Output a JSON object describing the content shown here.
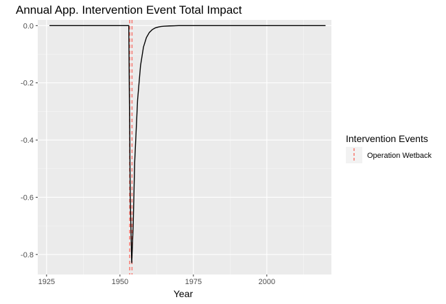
{
  "chart_data": {
    "type": "line",
    "title": "Annual App. Intervention Event Total Impact",
    "xlabel": "Year",
    "ylabel": "",
    "xlim": [
      1922,
      2022
    ],
    "ylim": [
      -0.87,
      0.02
    ],
    "x_ticks": [
      1925,
      1950,
      1975,
      2000
    ],
    "x_tick_labels": [
      "1925",
      "1950",
      "1975",
      "2000"
    ],
    "y_ticks": [
      0.0,
      -0.2,
      -0.4,
      -0.6,
      -0.8
    ],
    "y_tick_labels": [
      "0.0",
      "-0.2",
      "-0.4",
      "-0.6",
      "-0.8"
    ],
    "grid": true,
    "series": [
      {
        "color": "#000000",
        "x": [
          1926,
          1930,
          1935,
          1940,
          1945,
          1950,
          1952,
          1953,
          1953.5,
          1954,
          1954.5,
          1955,
          1956,
          1957,
          1958,
          1959,
          1960,
          1961,
          1962,
          1963,
          1964,
          1965,
          1967,
          1970,
          1975,
          1980,
          1990,
          2000,
          2010,
          2020
        ],
        "y": [
          0,
          0,
          0,
          0,
          0,
          0,
          0,
          0,
          -0.6,
          -0.83,
          -0.7,
          -0.48,
          -0.26,
          -0.14,
          -0.075,
          -0.042,
          -0.024,
          -0.014,
          -0.008,
          -0.005,
          -0.003,
          -0.002,
          -0.001,
          0,
          0,
          0,
          0,
          0,
          0,
          0
        ]
      }
    ],
    "events": [
      {
        "name": "Operation Wetback",
        "x": 1953.3,
        "color": "#f8766d"
      },
      {
        "name": "Operation Wetback",
        "x": 1954.1,
        "color": "#f8766d"
      }
    ],
    "legend": {
      "title": "Intervention Events",
      "entries": [
        "Operation Wetback"
      ],
      "placement": "right"
    }
  }
}
